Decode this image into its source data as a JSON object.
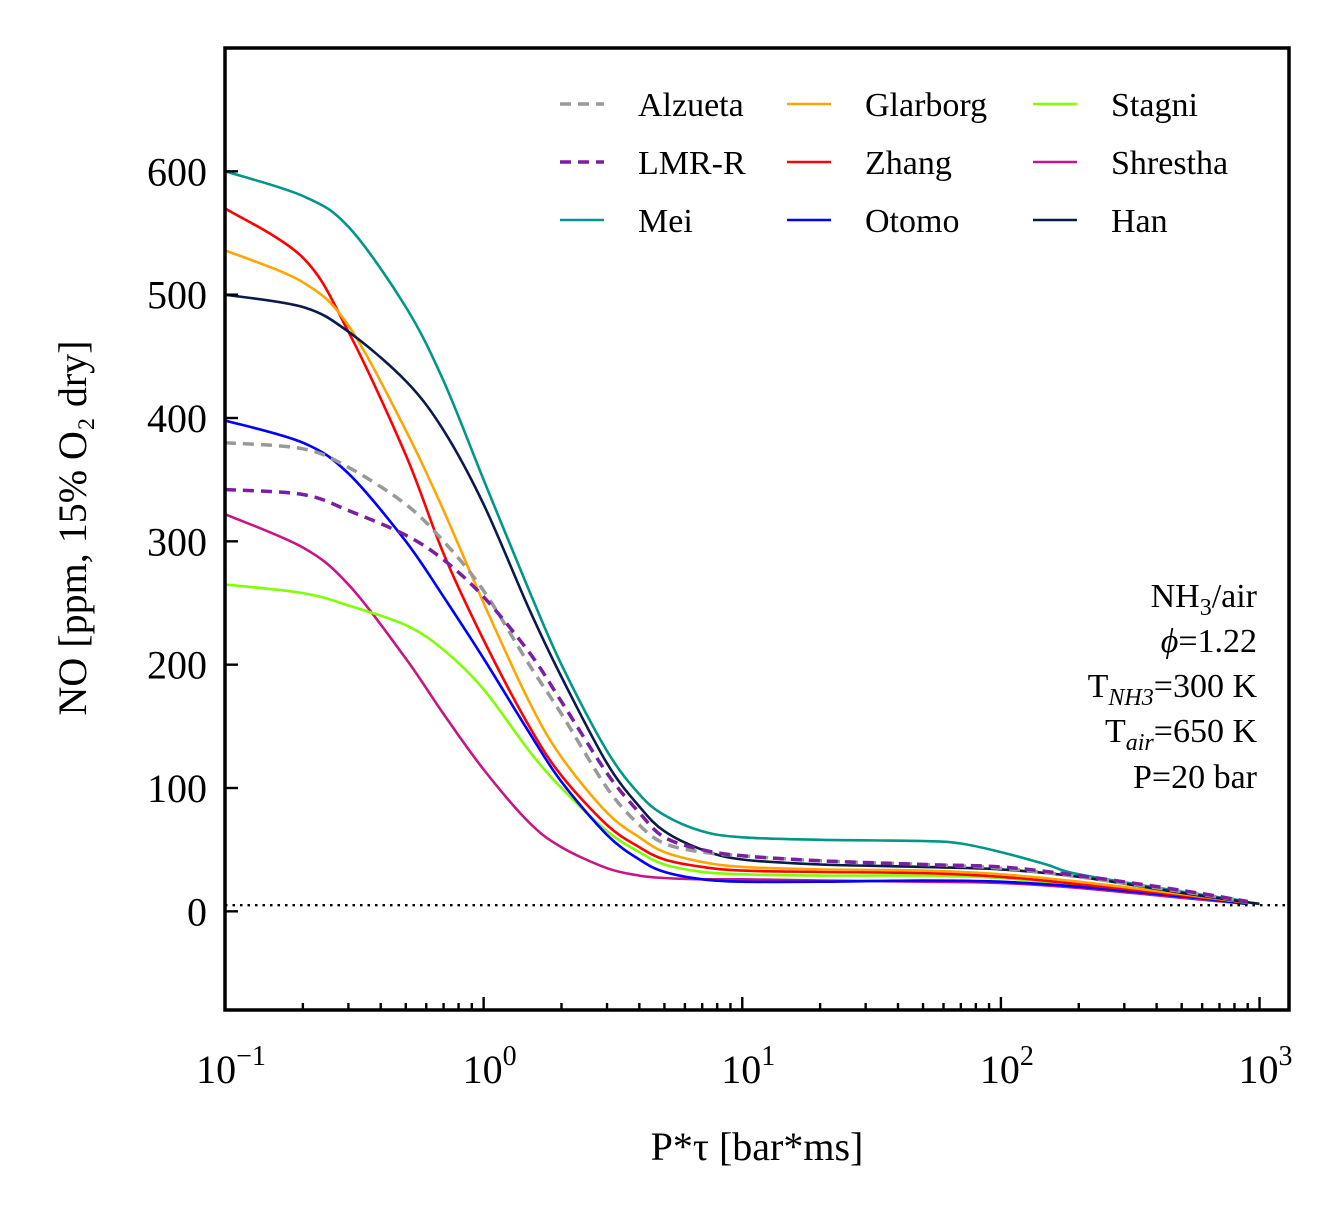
{
  "chart_data": {
    "type": "line",
    "xlabel": "P*τ [bar*ms]",
    "ylabel": "NO [ppm, 15% O₂ dry]",
    "x_scale": "log",
    "xlim": [
      0.1,
      1300
    ],
    "ylim": [
      -80,
      700
    ],
    "x_ticks": [
      {
        "value": 0.1,
        "base": "10",
        "exp": "−1"
      },
      {
        "value": 1,
        "base": "10",
        "exp": "0"
      },
      {
        "value": 10,
        "base": "10",
        "exp": "1"
      },
      {
        "value": 100,
        "base": "10",
        "exp": "2"
      },
      {
        "value": 1000,
        "base": "10",
        "exp": "3"
      }
    ],
    "y_ticks": [
      0,
      100,
      200,
      300,
      400,
      500,
      600
    ],
    "grid": false,
    "legend_position": "top-right",
    "reference_line": {
      "y": 5,
      "style": "dotted",
      "color": "#000000"
    },
    "annotation": [
      "NH₃/air",
      "ϕ=1.22",
      "T_NH₃=300 K",
      "T_air=650 K",
      "P=20 bar"
    ],
    "series": [
      {
        "name": "Alzueta",
        "color": "#999999",
        "dash": true,
        "x": [
          0.1,
          0.2,
          0.3,
          0.5,
          0.7,
          1,
          1.5,
          2,
          3,
          4,
          5,
          7,
          10,
          20,
          50,
          100,
          200,
          500,
          900
        ],
        "y": [
          380,
          375,
          360,
          330,
          300,
          260,
          200,
          160,
          100,
          70,
          55,
          48,
          45,
          41,
          38,
          35,
          28,
          16,
          8
        ]
      },
      {
        "name": "LMR-R",
        "color": "#7B1FA2",
        "dash": true,
        "x": [
          0.1,
          0.2,
          0.3,
          0.5,
          0.7,
          1,
          1.5,
          2,
          3,
          4,
          5,
          7,
          10,
          20,
          50,
          100,
          200,
          500,
          900
        ],
        "y": [
          342,
          338,
          325,
          305,
          285,
          255,
          210,
          170,
          112,
          80,
          60,
          50,
          45,
          41,
          38,
          36,
          29,
          17,
          8
        ]
      },
      {
        "name": "Mei",
        "color": "#009688",
        "dash": false,
        "x": [
          0.1,
          0.2,
          0.3,
          0.5,
          0.7,
          1,
          1.5,
          2,
          3,
          4,
          5,
          7,
          10,
          20,
          50,
          70,
          100,
          150,
          200,
          500,
          900
        ],
        "y": [
          600,
          580,
          555,
          490,
          430,
          350,
          260,
          200,
          130,
          95,
          78,
          65,
          60,
          58,
          57,
          55,
          48,
          38,
          30,
          16,
          8
        ]
      },
      {
        "name": "Glarborg",
        "color": "#FFA500",
        "dash": false,
        "x": [
          0.1,
          0.2,
          0.3,
          0.5,
          0.7,
          1,
          1.5,
          2,
          3,
          4,
          5,
          7,
          10,
          20,
          50,
          100,
          200,
          500,
          900
        ],
        "y": [
          536,
          510,
          475,
          390,
          325,
          250,
          170,
          125,
          80,
          60,
          48,
          40,
          36,
          34,
          33,
          30,
          24,
          14,
          7
        ]
      },
      {
        "name": "Zhang",
        "color": "#FF0000",
        "dash": false,
        "x": [
          0.1,
          0.2,
          0.3,
          0.5,
          0.7,
          1,
          1.5,
          2,
          3,
          4,
          5,
          7,
          10,
          20,
          50,
          100,
          200,
          500,
          900
        ],
        "y": [
          570,
          530,
          470,
          370,
          290,
          220,
          150,
          110,
          70,
          52,
          42,
          36,
          33,
          32,
          31,
          28,
          22,
          13,
          7
        ]
      },
      {
        "name": "Otomo",
        "color": "#0000FF",
        "dash": false,
        "x": [
          0.1,
          0.2,
          0.3,
          0.5,
          0.7,
          1,
          1.5,
          2,
          3,
          4,
          5,
          7,
          10,
          20,
          50,
          100,
          200,
          500,
          900
        ],
        "y": [
          398,
          380,
          355,
          300,
          255,
          205,
          145,
          105,
          62,
          42,
          32,
          26,
          24,
          24,
          25,
          24,
          20,
          12,
          6
        ]
      },
      {
        "name": "Stagni",
        "color": "#7FFF00",
        "dash": false,
        "x": [
          0.1,
          0.2,
          0.3,
          0.5,
          0.7,
          1,
          1.5,
          2,
          3,
          4,
          5,
          7,
          10,
          20,
          50,
          100,
          200,
          500,
          900
        ],
        "y": [
          265,
          258,
          248,
          232,
          212,
          180,
          130,
          100,
          65,
          48,
          38,
          32,
          30,
          29,
          29,
          27,
          21,
          12,
          6
        ]
      },
      {
        "name": "Shrestha",
        "color": "#C71585",
        "dash": false,
        "x": [
          0.1,
          0.2,
          0.3,
          0.5,
          0.7,
          1,
          1.5,
          2,
          3,
          4,
          5,
          7,
          10,
          20,
          50,
          100,
          200,
          500,
          900
        ],
        "y": [
          322,
          295,
          265,
          205,
          160,
          115,
          72,
          52,
          35,
          29,
          27,
          26,
          26,
          25,
          24,
          23,
          19,
          11,
          6
        ]
      },
      {
        "name": "Han",
        "color": "#0A1A4A",
        "dash": false,
        "x": [
          0.1,
          0.2,
          0.3,
          0.5,
          0.7,
          1,
          1.5,
          2,
          3,
          4,
          5,
          7,
          10,
          20,
          50,
          100,
          200,
          500,
          1000
        ],
        "y": [
          500,
          490,
          470,
          430,
          390,
          330,
          245,
          190,
          120,
          85,
          65,
          50,
          42,
          38,
          36,
          34,
          28,
          15,
          6
        ]
      }
    ]
  }
}
